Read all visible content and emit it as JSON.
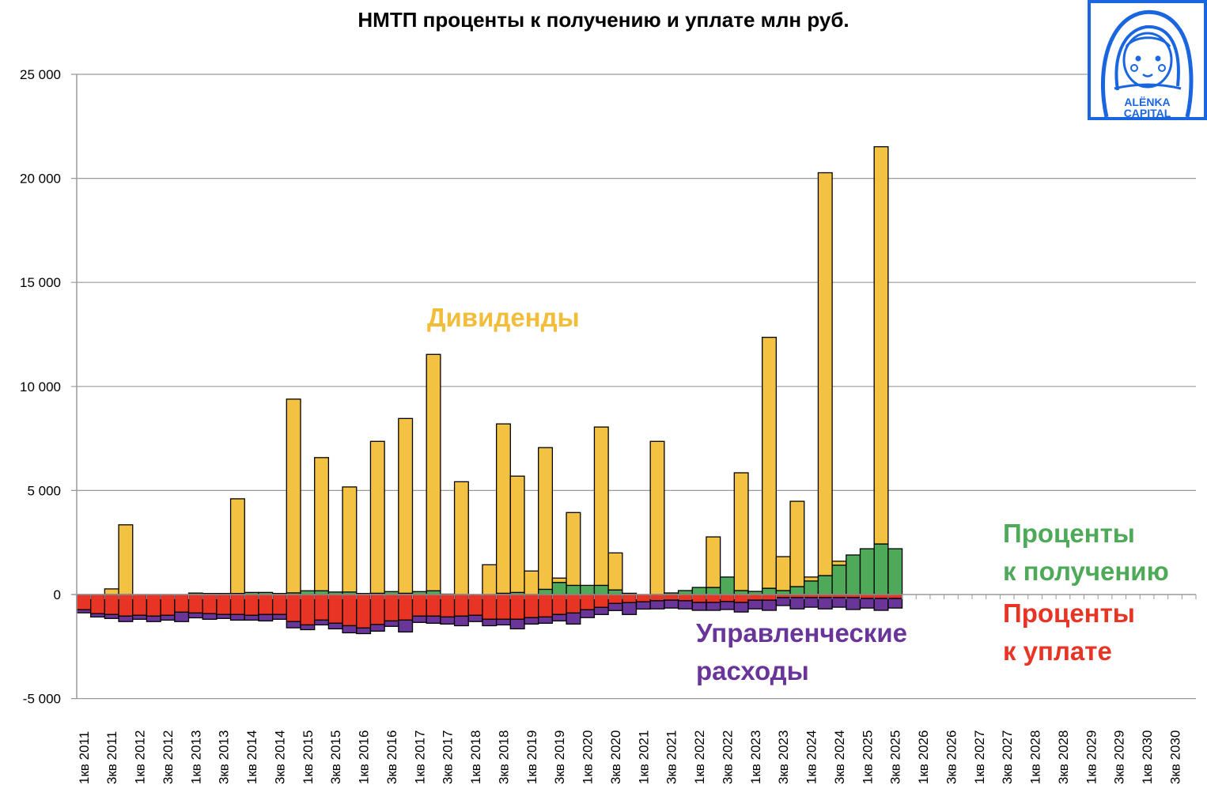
{
  "chart_data": {
    "type": "bar",
    "stacked": true,
    "title": "НМТП проценты к получению и уплате млн руб.",
    "xlabel": "",
    "ylabel": "",
    "ylim": [
      -5000,
      25000
    ],
    "y_ticks": [
      "-5 000",
      "0",
      "5 000",
      "10 000",
      "15 000",
      "20 000",
      "25 000"
    ],
    "y_tick_values": [
      -5000,
      0,
      5000,
      10000,
      15000,
      20000,
      25000
    ],
    "grid": true,
    "x_tick_labels": [
      "1кв 2011",
      "3кв 2011",
      "1кв 2012",
      "3кв 2012",
      "1кв 2013",
      "3кв 2013",
      "1кв 2014",
      "3кв 2014",
      "1кв 2015",
      "3кв 2015",
      "1кв 2016",
      "3кв 2016",
      "1кв 2017",
      "3кв 2017",
      "1кв 2018",
      "3кв 2018",
      "1кв 2019",
      "3кв 2019",
      "1кв 2020",
      "3кв 2020",
      "1кв 2021",
      "3кв 2021",
      "1кв 2022",
      "3кв 2022",
      "1кв 2023",
      "3кв 2023",
      "1кв 2024",
      "3кв 2024",
      "1кв 2025",
      "3кв 2025",
      "1кв 2026",
      "3кв 2026",
      "1кв 2027",
      "3кв 2027",
      "1кв 2028",
      "3кв 2028",
      "1кв 2029",
      "3кв 2029",
      "1кв 2030",
      "3кв 2030"
    ],
    "quarters_on_axis": 80,
    "series": [
      {
        "name": "Проценты к получению",
        "color": "#4EAA59",
        "values": [
          0,
          0,
          0,
          0,
          0,
          0,
          0,
          0,
          70,
          50,
          50,
          50,
          100,
          100,
          50,
          80,
          180,
          180,
          120,
          120,
          50,
          60,
          140,
          60,
          140,
          180,
          20,
          0,
          0,
          0,
          60,
          100,
          0,
          250,
          580,
          440,
          440,
          440,
          220,
          60,
          0,
          0,
          76,
          190,
          340,
          340,
          840,
          190,
          150,
          300,
          190,
          380,
          650,
          910,
          1410,
          1900,
          2200,
          2430,
          2200
        ]
      },
      {
        "name": "Дивиденды",
        "color": "#F4C242",
        "values": [
          0,
          0,
          270,
          3350,
          0,
          0,
          0,
          0,
          0,
          0,
          0,
          4550,
          0,
          0,
          0,
          9310,
          0,
          6400,
          0,
          5050,
          0,
          7300,
          0,
          8400,
          0,
          11360,
          0,
          5420,
          0,
          1430,
          8140,
          5590,
          1130,
          6810,
          210,
          3500,
          0,
          7610,
          1780,
          0,
          0,
          7360,
          0,
          0,
          0,
          2430,
          0,
          5660,
          0,
          12060,
          1630,
          4100,
          190,
          19360,
          190,
          0,
          0,
          19090,
          0
        ]
      },
      {
        "name": "Проценты к уплате",
        "color": "#E83424",
        "values": [
          -730,
          -920,
          -960,
          -1040,
          -1000,
          -1040,
          -1000,
          -850,
          -890,
          -920,
          -960,
          -960,
          -1000,
          -960,
          -960,
          -1300,
          -1460,
          -1230,
          -1380,
          -1500,
          -1610,
          -1440,
          -1270,
          -1230,
          -1040,
          -1040,
          -1080,
          -1040,
          -1000,
          -1190,
          -1190,
          -1190,
          -1110,
          -1080,
          -960,
          -890,
          -730,
          -620,
          -430,
          -390,
          -350,
          -300,
          -270,
          -300,
          -380,
          -380,
          -340,
          -380,
          -270,
          -270,
          -150,
          -150,
          -150,
          -150,
          -150,
          -150,
          -190,
          -190,
          -190
        ]
      },
      {
        "name": "Управленческие расходы",
        "color": "#6A3598",
        "values": [
          -150,
          -160,
          -190,
          -260,
          -190,
          -260,
          -230,
          -450,
          -230,
          -270,
          -190,
          -270,
          -230,
          -310,
          -230,
          -300,
          -230,
          -230,
          -270,
          -340,
          -270,
          -320,
          -260,
          -570,
          -300,
          -340,
          -340,
          -460,
          -300,
          -310,
          -270,
          -460,
          -310,
          -300,
          -310,
          -530,
          -380,
          -340,
          -340,
          -570,
          -350,
          -390,
          -380,
          -390,
          -380,
          -380,
          -380,
          -460,
          -420,
          -490,
          -380,
          -540,
          -460,
          -540,
          -460,
          -570,
          -460,
          -570,
          -460
        ]
      }
    ],
    "annotations": {
      "dividends": "Дивиденды",
      "interest_received": [
        "Проценты",
        "к получению"
      ],
      "interest_paid": [
        "Проценты",
        "к уплате"
      ],
      "management_expenses": [
        "Управленческие",
        "расходы"
      ]
    }
  },
  "logo": {
    "text_line1": "ALЁNKA",
    "text_line2": "CAPITAL",
    "color": "#1A66E0"
  }
}
